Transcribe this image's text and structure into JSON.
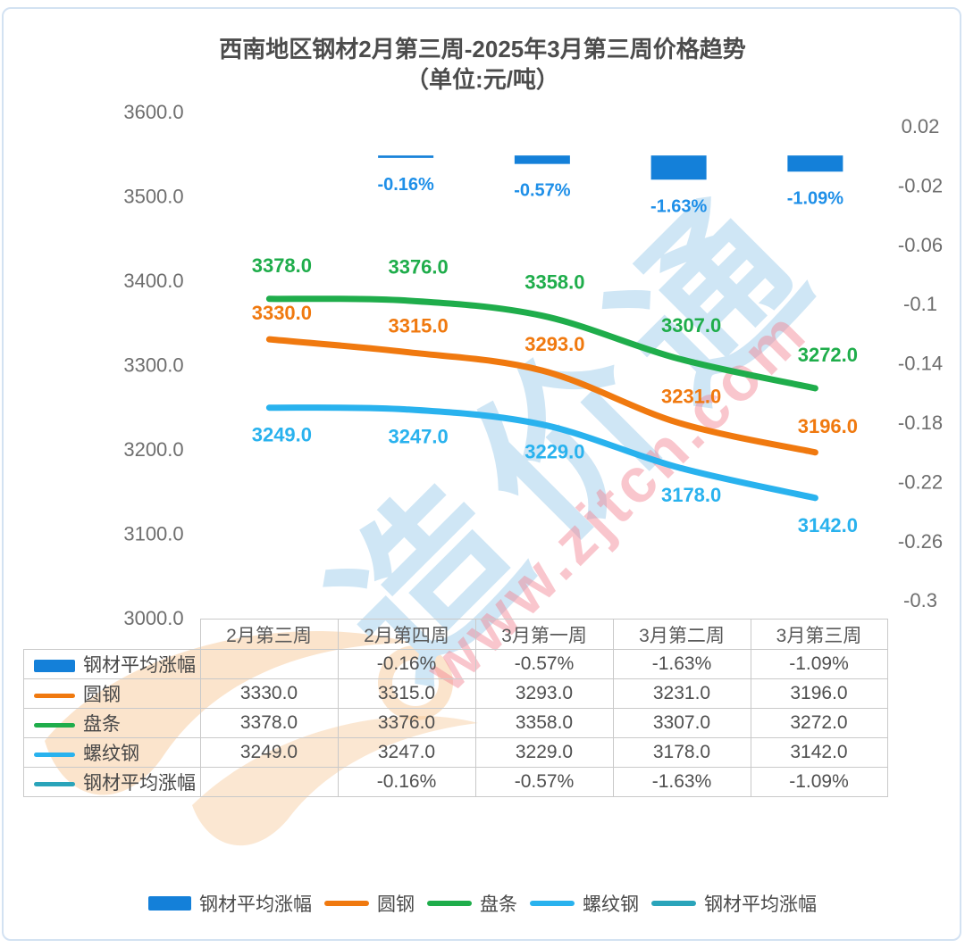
{
  "title": {
    "line1": "西南地区钢材2月第三周-2025年3月第三周价格趋势",
    "line2": "（单位:元/吨）"
  },
  "watermark": {
    "brand": "造价通",
    "url": "www.zjtcn.com"
  },
  "chart_data": {
    "type": "bar+line combo",
    "categories": [
      "2月第三周",
      "2月第四周",
      "3月第一周",
      "3月第二周",
      "3月第三周"
    ],
    "left_axis": {
      "ticks": [
        "3600.0",
        "3500.0",
        "3400.0",
        "3300.0",
        "3200.0",
        "3100.0",
        "3000.0"
      ],
      "min": 3000,
      "max": 3600
    },
    "right_axis": {
      "ticks": [
        "0.02",
        "-0.02",
        "-0.06",
        "-0.1",
        "-0.14",
        "-0.18",
        "-0.22",
        "-0.26",
        "-0.3"
      ],
      "min": -0.3,
      "max": 0.02
    },
    "legend_position": "bottom",
    "grid": false,
    "series": [
      {
        "name": "钢材平均涨幅",
        "type": "bar",
        "axis": "right",
        "color": "#1480d9",
        "label_color": "#1e8fe8",
        "values": [
          null,
          -0.0016,
          -0.0057,
          -0.0163,
          -0.0109
        ],
        "labels": [
          "",
          "-0.16%",
          "-0.57%",
          "-1.63%",
          "-1.09%"
        ]
      },
      {
        "name": "圆钢",
        "type": "line",
        "axis": "left",
        "color": "#f0790f",
        "values": [
          3330,
          3315,
          3293,
          3231,
          3196
        ],
        "labels": [
          "3330.0",
          "3315.0",
          "3293.0",
          "3231.0",
          "3196.0"
        ]
      },
      {
        "name": "盘条",
        "type": "line",
        "axis": "left",
        "color": "#1fad4b",
        "values": [
          3378,
          3376,
          3358,
          3307,
          3272
        ],
        "labels": [
          "3378.0",
          "3376.0",
          "3358.0",
          "3307.0",
          "3272.0"
        ]
      },
      {
        "name": "螺纹钢",
        "type": "line",
        "axis": "left",
        "color": "#29b2ee",
        "values": [
          3249,
          3247,
          3229,
          3178,
          3142
        ],
        "labels": [
          "3249.0",
          "3247.0",
          "3229.0",
          "3178.0",
          "3142.0"
        ]
      },
      {
        "name": "钢材平均涨幅",
        "type": "line",
        "axis": "left",
        "color": "#2aa4ba",
        "plotted": false,
        "values": [
          null,
          -0.16,
          -0.57,
          -1.63,
          -1.09
        ],
        "labels": [
          "",
          "-0.16%",
          "-0.57%",
          "-1.63%",
          "-1.09%"
        ]
      }
    ]
  },
  "table": {
    "col_headers": [
      "2月第三周",
      "2月第四周",
      "3月第一周",
      "3月第二周",
      "3月第三周"
    ],
    "rows": [
      {
        "name": "钢材平均涨幅",
        "swatch": "bar",
        "color": "#1480d9",
        "cells": [
          "",
          "-0.16%",
          "-0.57%",
          "-1.63%",
          "-1.09%"
        ]
      },
      {
        "name": "圆钢",
        "swatch": "line",
        "color": "#f0790f",
        "cells": [
          "3330.0",
          "3315.0",
          "3293.0",
          "3231.0",
          "3196.0"
        ]
      },
      {
        "name": "盘条",
        "swatch": "line",
        "color": "#1fad4b",
        "cells": [
          "3378.0",
          "3376.0",
          "3358.0",
          "3307.0",
          "3272.0"
        ]
      },
      {
        "name": "螺纹钢",
        "swatch": "line",
        "color": "#29b2ee",
        "cells": [
          "3249.0",
          "3247.0",
          "3229.0",
          "3178.0",
          "3142.0"
        ]
      },
      {
        "name": "钢材平均涨幅",
        "swatch": "line",
        "color": "#2aa4ba",
        "cells": [
          "",
          "-0.16%",
          "-0.57%",
          "-1.63%",
          "-1.09%"
        ]
      }
    ]
  },
  "legend": {
    "items": [
      {
        "label": "钢材平均涨幅",
        "swatch": "bar",
        "color": "#1480d9"
      },
      {
        "label": "圆钢",
        "swatch": "line",
        "color": "#f0790f"
      },
      {
        "label": "盘条",
        "swatch": "line",
        "color": "#1fad4b"
      },
      {
        "label": "螺纹钢",
        "swatch": "line",
        "color": "#29b2ee"
      },
      {
        "label": "钢材平均涨幅",
        "swatch": "line",
        "color": "#2aa4ba"
      }
    ]
  }
}
